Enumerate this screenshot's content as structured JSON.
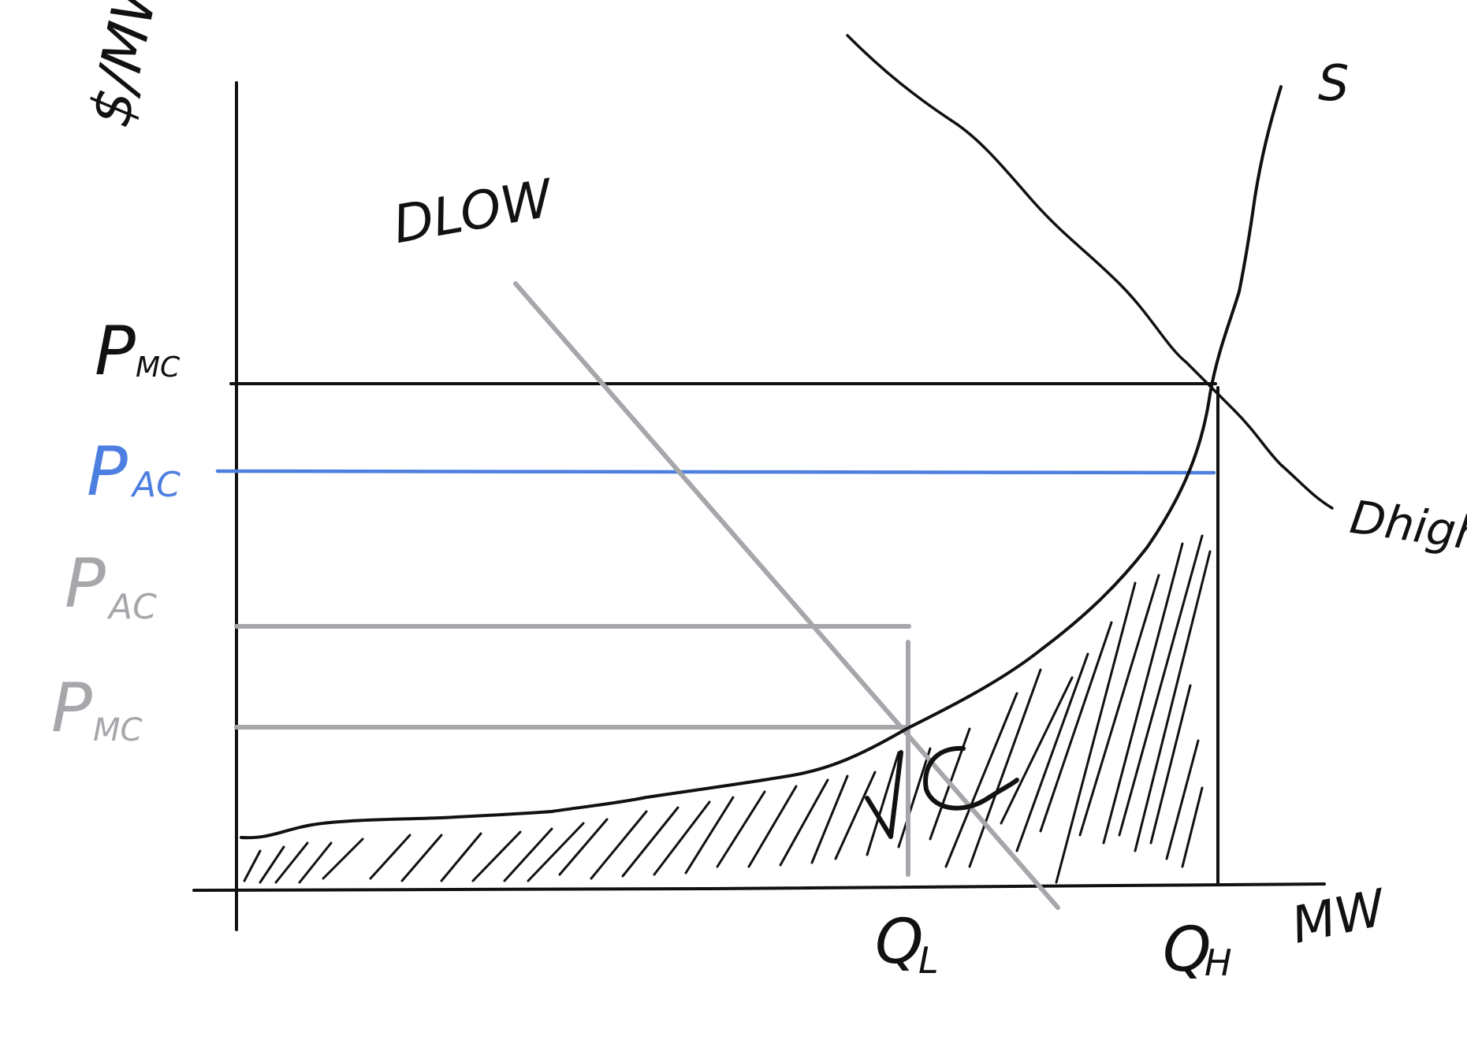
{
  "diagram": {
    "y_axis_label": "$/MW",
    "x_axis_label": "MW",
    "price_levels": [
      {
        "label_main": "P",
        "label_sub": "MC",
        "color": "#111111"
      },
      {
        "label_main": "P",
        "label_sub": "AC",
        "color": "#4d7fe0"
      },
      {
        "label_main": "P",
        "label_sub": "AC",
        "color": "#a5a7ab"
      },
      {
        "label_main": "P",
        "label_sub": "MC",
        "color": "#a5a7ab"
      }
    ],
    "quantity_labels": [
      {
        "label_main": "Q",
        "label_sub": "L"
      },
      {
        "label_main": "Q",
        "label_sub": "H"
      }
    ],
    "curves": {
      "supply": "S",
      "demand_low": "DLOW",
      "demand_high": "Dhigh"
    },
    "area_label": "VC",
    "colors": {
      "ink": "#111111",
      "gray": "#a5a7ab",
      "blue": "#4d7fe0",
      "background": "#ffffff"
    }
  }
}
